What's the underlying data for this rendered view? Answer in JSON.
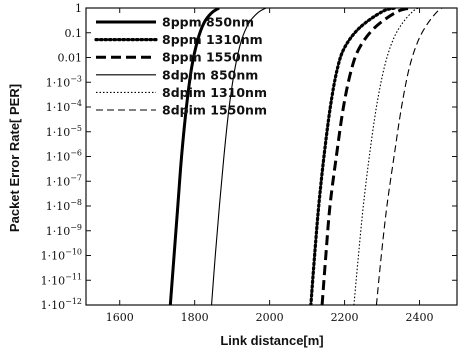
{
  "chart_data": {
    "type": "line",
    "xlabel": "Link distance[m]",
    "ylabel": "Packet Error Rate[ PER]",
    "xlim": [
      1510,
      2500
    ],
    "ylim_log10": [
      -12,
      0
    ],
    "log_y": true,
    "grid": false,
    "legend_placement": "top-left",
    "x_ticks": [
      {
        "value": 1600,
        "label": "1600"
      },
      {
        "value": 1800,
        "label": "1800"
      },
      {
        "value": 2000,
        "label": "2000"
      },
      {
        "value": 2200,
        "label": "2200"
      },
      {
        "value": 2400,
        "label": "2400"
      }
    ],
    "y_ticks": [
      {
        "exp": 0,
        "base": "1",
        "sup": ""
      },
      {
        "exp": -1,
        "base": "0.1",
        "sup": ""
      },
      {
        "exp": -2,
        "base": "0.01",
        "sup": ""
      },
      {
        "exp": -3,
        "base": "1·10",
        "sup": "−3"
      },
      {
        "exp": -4,
        "base": "1·10",
        "sup": "−4"
      },
      {
        "exp": -5,
        "base": "1·10",
        "sup": "−5"
      },
      {
        "exp": -6,
        "base": "1·10",
        "sup": "−6"
      },
      {
        "exp": -7,
        "base": "1·10",
        "sup": "−7"
      },
      {
        "exp": -8,
        "base": "1·10",
        "sup": "−8"
      },
      {
        "exp": -9,
        "base": "1·10",
        "sup": "−9"
      },
      {
        "exp": -10,
        "base": "1·10",
        "sup": "−10"
      },
      {
        "exp": -11,
        "base": "1·10",
        "sup": "−11"
      },
      {
        "exp": -12,
        "base": "1·10",
        "sup": "−12"
      }
    ],
    "series": [
      {
        "name": "8ppm 850nm",
        "style": "thick-solid",
        "points": [
          [
            1735,
            -12
          ],
          [
            1745,
            -10
          ],
          [
            1755,
            -8
          ],
          [
            1765,
            -6
          ],
          [
            1778,
            -4
          ],
          [
            1792,
            -2.4
          ],
          [
            1808,
            -1.3
          ],
          [
            1825,
            -0.6
          ],
          [
            1845,
            -0.2
          ],
          [
            1865,
            0
          ]
        ]
      },
      {
        "name": "8ppm 1310nm",
        "style": "dotted",
        "points": [
          [
            2110,
            -12
          ],
          [
            2120,
            -10
          ],
          [
            2131,
            -8
          ],
          [
            2145,
            -6
          ],
          [
            2162,
            -4
          ],
          [
            2180,
            -2.5
          ],
          [
            2200,
            -1.6
          ],
          [
            2240,
            -0.8
          ],
          [
            2300,
            -0.15
          ],
          [
            2335,
            0
          ]
        ]
      },
      {
        "name": "8ppm 1550nm",
        "style": "long-dash",
        "points": [
          [
            2140,
            -12
          ],
          [
            2150,
            -10
          ],
          [
            2161,
            -8
          ],
          [
            2178,
            -6
          ],
          [
            2197,
            -4
          ],
          [
            2218,
            -2.5
          ],
          [
            2240,
            -1.6
          ],
          [
            2280,
            -0.8
          ],
          [
            2340,
            -0.15
          ],
          [
            2380,
            0
          ]
        ]
      },
      {
        "name": "8dpim 850nm",
        "style": "thin-solid",
        "points": [
          [
            1845,
            -12
          ],
          [
            1855,
            -10
          ],
          [
            1866,
            -8
          ],
          [
            1878,
            -6
          ],
          [
            1892,
            -4
          ],
          [
            1908,
            -2.4
          ],
          [
            1925,
            -1.3
          ],
          [
            1945,
            -0.6
          ],
          [
            1968,
            -0.2
          ],
          [
            1990,
            0
          ]
        ]
      },
      {
        "name": "8dpim 1310nm",
        "style": "thin-dotted",
        "points": [
          [
            2225,
            -12
          ],
          [
            2237,
            -10
          ],
          [
            2250,
            -8
          ],
          [
            2266,
            -6
          ],
          [
            2285,
            -4
          ],
          [
            2306,
            -2.4
          ],
          [
            2329,
            -1.3
          ],
          [
            2355,
            -0.6
          ],
          [
            2385,
            -0.1
          ],
          [
            2400,
            0
          ]
        ]
      },
      {
        "name": "8dpim 1550nm",
        "style": "thin-dash",
        "points": [
          [
            2285,
            -12
          ],
          [
            2298,
            -10
          ],
          [
            2313,
            -8
          ],
          [
            2332,
            -6
          ],
          [
            2352,
            -4
          ],
          [
            2373,
            -2.4
          ],
          [
            2397,
            -1.3
          ],
          [
            2423,
            -0.6
          ],
          [
            2450,
            -0.1
          ],
          [
            2460,
            0
          ]
        ]
      }
    ]
  }
}
